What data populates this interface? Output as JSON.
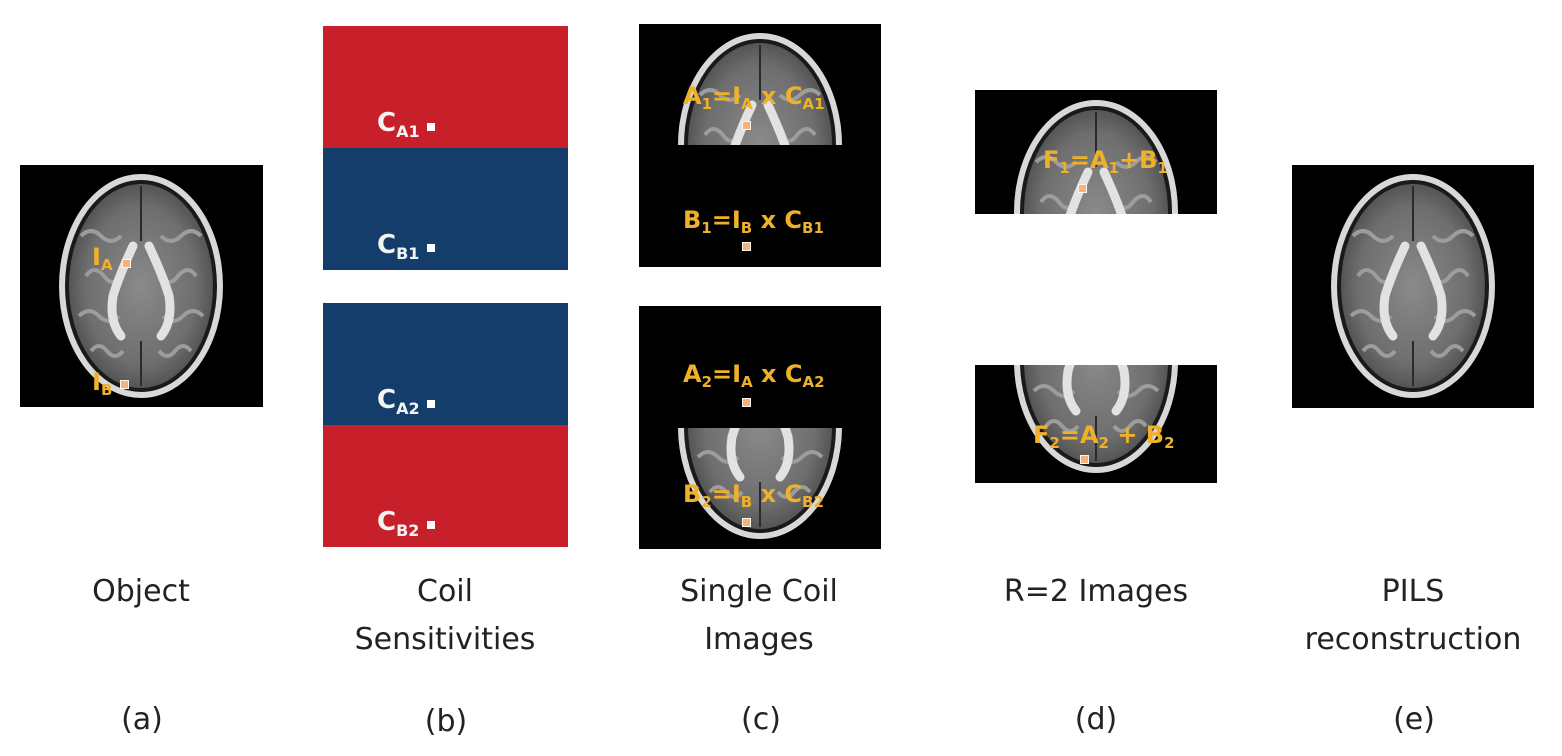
{
  "colors": {
    "label_yellow": "#f0b12a",
    "coil_red": "#c8202a",
    "coil_blue": "#143d6b",
    "background": "#000000"
  },
  "panels": {
    "a": {
      "caption": "Object",
      "letter": "(a)",
      "labels": {
        "ia": "I",
        "ia_sub": "A",
        "ib": "I",
        "ib_sub": "B"
      }
    },
    "b": {
      "caption_line1": "Coil",
      "caption_line2": "Sensitivities",
      "letter": "(b)",
      "labels": {
        "ca1": "C",
        "ca1_sub": "A1",
        "cb1": "C",
        "cb1_sub": "B1",
        "ca2": "C",
        "ca2_sub": "A2",
        "cb2": "C",
        "cb2_sub": "B2"
      }
    },
    "c": {
      "caption_line1": "Single Coil",
      "caption_line2": "Images",
      "letter": "(c)",
      "eq_a1": {
        "p1": "A",
        "s1": "1",
        "p2": "=I",
        "s2": "A",
        "p3": " x C",
        "s3": "A1"
      },
      "eq_b1": {
        "p1": "B",
        "s1": "1",
        "p2": "=I",
        "s2": "B",
        "p3": " x C",
        "s3": "B1"
      },
      "eq_a2": {
        "p1": "A",
        "s1": "2",
        "p2": "=I",
        "s2": "A",
        "p3": " x C",
        "s3": "A2"
      },
      "eq_b2": {
        "p1": "B",
        "s1": "2",
        "p2": "=I",
        "s2": "B",
        "p3": " x C",
        "s3": "B2"
      }
    },
    "d": {
      "caption": "R=2 Images",
      "letter": "(d)",
      "eq_f1": {
        "p1": "F",
        "s1": "1",
        "p2": "=A",
        "s2": "1",
        "p3": "+B",
        "s3": "1"
      },
      "eq_f2": {
        "p1": "F",
        "s1": "2",
        "p2": "=A",
        "s2": "2",
        "p3": " + B",
        "s3": "2"
      }
    },
    "e": {
      "caption_line1": "PILS",
      "caption_line2": "reconstruction",
      "letter": "(e)"
    }
  }
}
